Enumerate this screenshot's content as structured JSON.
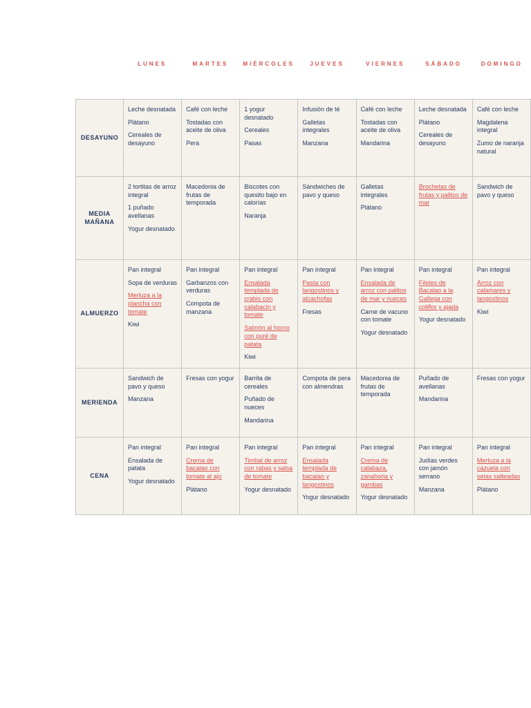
{
  "colors": {
    "day_header": "#d94f4a",
    "cell_text": "#253a5e",
    "highlight_link": "#d94f4a",
    "cell_background": "#f5f2ec",
    "border": "#c4c4c4",
    "page_background": "#ffffff"
  },
  "days": [
    "LUNES",
    "MARTES",
    "MIÉRCOLES",
    "JUEVES",
    "VIERNES",
    "SÁBADO",
    "DOMINGO"
  ],
  "table": {
    "rows": [
      {
        "label": "DESAYUNO",
        "cells": [
          {
            "items": [
              {
                "text": "Leche desnatada"
              },
              {
                "text": "Plátano"
              },
              {
                "text": "Cereales de desayuno"
              }
            ]
          },
          {
            "items": [
              {
                "text": "Café con leche"
              },
              {
                "text": "Tostadas con aceite de oliva"
              },
              {
                "text": "Pera"
              }
            ]
          },
          {
            "items": [
              {
                "text": "1 yogur desnatado"
              },
              {
                "text": "Cereales"
              },
              {
                "text": "Pasas"
              }
            ]
          },
          {
            "items": [
              {
                "text": "Infusión de té"
              },
              {
                "text": "Galletas integrales"
              },
              {
                "text": "Manzana"
              }
            ]
          },
          {
            "items": [
              {
                "text": "Café con leche"
              },
              {
                "text": "Tostadas con aceite de oliva"
              },
              {
                "text": "Mandarina"
              }
            ]
          },
          {
            "items": [
              {
                "text": "Leche desnatada"
              },
              {
                "text": "Plátano"
              },
              {
                "text": "Cereales de desayuno"
              }
            ]
          },
          {
            "items": [
              {
                "text": "Café con leche"
              },
              {
                "text": "Magdalena integral"
              },
              {
                "text": "Zumo de naranja natural"
              }
            ]
          }
        ]
      },
      {
        "label": "MEDIA MAÑANA",
        "cells": [
          {
            "items": [
              {
                "text": "2 tortitas de arroz integral"
              },
              {
                "text": "1 puñado avellanas"
              },
              {
                "text": "Yogur desnatado"
              }
            ]
          },
          {
            "items": [
              {
                "text": "Macedonia de frutas de temporada"
              }
            ]
          },
          {
            "items": [
              {
                "text": "Biscotes con quesito bajo en calorías"
              },
              {
                "text": "Naranja"
              }
            ]
          },
          {
            "items": [
              {
                "text": "Sándwiches de pavo y queso"
              }
            ]
          },
          {
            "items": [
              {
                "text": "Galletas integrales"
              },
              {
                "text": "Plátano"
              }
            ]
          },
          {
            "items": [
              {
                "text": "Brochetas de frutas y palitos de mar",
                "highlight": true
              }
            ]
          },
          {
            "items": [
              {
                "text": "Sandwich de pavo y queso"
              }
            ]
          }
        ]
      },
      {
        "label": "ALMUERZO",
        "cells": [
          {
            "items": [
              {
                "text": "Pan integral"
              },
              {
                "text": "Sopa de verduras"
              },
              {
                "text": "Merluza a la plancha con tomate",
                "highlight": true
              },
              {
                "text": "Kiwi"
              }
            ]
          },
          {
            "items": [
              {
                "text": "Pan integral"
              },
              {
                "text": "Garbanzos con verduras"
              },
              {
                "text": "Compota de manzana"
              }
            ]
          },
          {
            "items": [
              {
                "text": "Pan integral"
              },
              {
                "text": "Ensalada templada de crabis con calabacín y tomate",
                "highlight": true
              },
              {
                "text": "Salmón al horno con puré de patata",
                "highlight": true
              },
              {
                "text": "Kiwi"
              }
            ]
          },
          {
            "items": [
              {
                "text": "Pan integral"
              },
              {
                "text": "Pasta con langostinos y alcachofas",
                "highlight": true
              },
              {
                "text": "Fresas"
              }
            ]
          },
          {
            "items": [
              {
                "text": "Pan integral"
              },
              {
                "text": "Ensalada de arroz con palitos de mar y nueces",
                "highlight": true
              },
              {
                "text": "Carne de vacuno con tomate"
              },
              {
                "text": "Yogur desnatado"
              }
            ]
          },
          {
            "items": [
              {
                "text": "Pan integral"
              },
              {
                "text": "Filetes de Bacalao a la Gallega con coliflor y ajada",
                "highlight": true
              },
              {
                "text": "Yogur desnatado"
              }
            ]
          },
          {
            "items": [
              {
                "text": "Pan integral"
              },
              {
                "text": "Arroz con calamares y langostinos",
                "highlight": true
              },
              {
                "text": "Kiwi"
              }
            ]
          }
        ]
      },
      {
        "label": "MERIENDA",
        "cells": [
          {
            "items": [
              {
                "text": "Sandwich de pavo y queso"
              },
              {
                "text": "Manzana"
              }
            ]
          },
          {
            "items": [
              {
                "text": "Fresas con yogur"
              }
            ]
          },
          {
            "items": [
              {
                "text": "Barrita de cereales"
              },
              {
                "text": "Puñado de nueces"
              },
              {
                "text": "Mandarina"
              }
            ]
          },
          {
            "items": [
              {
                "text": "Compota de pera con almendras"
              }
            ]
          },
          {
            "items": [
              {
                "text": "Macedonia de frutas de temporada"
              }
            ]
          },
          {
            "items": [
              {
                "text": "Puñado de avellanas"
              },
              {
                "text": "Mandarina"
              }
            ]
          },
          {
            "items": [
              {
                "text": "Fresas con yogur"
              }
            ]
          }
        ]
      },
      {
        "label": "CENA",
        "cells": [
          {
            "items": [
              {
                "text": "Pan integral"
              },
              {
                "text": "Ensalada de patata"
              },
              {
                "text": "Yogur desnatado"
              }
            ]
          },
          {
            "items": [
              {
                "text": "Pan integral"
              },
              {
                "text": "Crema de bacalao con tomate al ajo",
                "highlight": true
              },
              {
                "text": "Plátano"
              }
            ]
          },
          {
            "items": [
              {
                "text": "Pan integral"
              },
              {
                "text": "Timbal de arroz con rabas y salsa de tomate",
                "highlight": true
              },
              {
                "text": "Yogur desnatado"
              }
            ]
          },
          {
            "items": [
              {
                "text": "Pan integral"
              },
              {
                "text": "Ensalada templada de bacalao y langostinos",
                "highlight": true
              },
              {
                "text": "Yogur desnatado"
              }
            ]
          },
          {
            "items": [
              {
                "text": "Pan integral"
              },
              {
                "text": "Crema de calabaza, zanahoria y gambas",
                "highlight": true
              },
              {
                "text": "Yogur desnatado"
              }
            ]
          },
          {
            "items": [
              {
                "text": "Pan integral"
              },
              {
                "text": "Judías verdes con jamón serrano"
              },
              {
                "text": "Manzana"
              }
            ]
          },
          {
            "items": [
              {
                "text": "Pan integral"
              },
              {
                "text": "Merluza a la cazuela con setas salteadas",
                "highlight": true
              },
              {
                "text": "Plátano"
              }
            ]
          }
        ]
      }
    ]
  }
}
